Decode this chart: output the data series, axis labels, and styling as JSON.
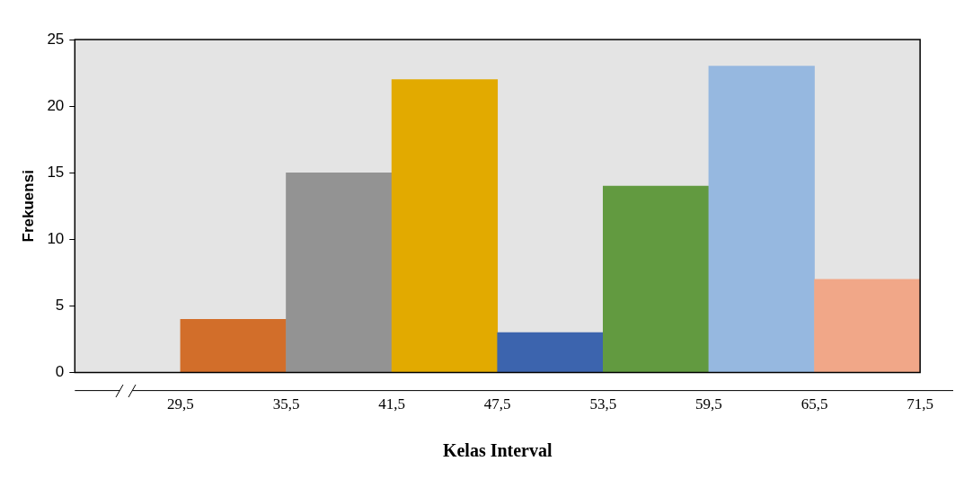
{
  "chart_data": {
    "type": "histogram",
    "xlabel": "Kelas Interval",
    "ylabel": "Frekuensi",
    "bins": [
      29.5,
      35.5,
      41.5,
      47.5,
      53.5,
      59.5,
      65.5,
      71.5
    ],
    "values": [
      4,
      15,
      22,
      3,
      14,
      23,
      7
    ],
    "colors": [
      "#d26e2a",
      "#939393",
      "#e2aa00",
      "#3c64ae",
      "#629a40",
      "#96b8e0",
      "#f1a788"
    ],
    "xlim": [
      23.5,
      71.5
    ],
    "xticks": [
      {
        "value": 29.5,
        "label": "29,5"
      },
      {
        "value": 35.5,
        "label": "35,5"
      },
      {
        "value": 41.5,
        "label": "41,5"
      },
      {
        "value": 47.5,
        "label": "47,5"
      },
      {
        "value": 53.5,
        "label": "53,5"
      },
      {
        "value": 59.5,
        "label": "59,5"
      },
      {
        "value": 65.5,
        "label": "65,5"
      },
      {
        "value": 71.5,
        "label": "71,5"
      }
    ],
    "ylim": [
      0,
      25
    ],
    "yticks": [
      0,
      5,
      10,
      15,
      20,
      25
    ],
    "grid": false,
    "legend": false
  }
}
